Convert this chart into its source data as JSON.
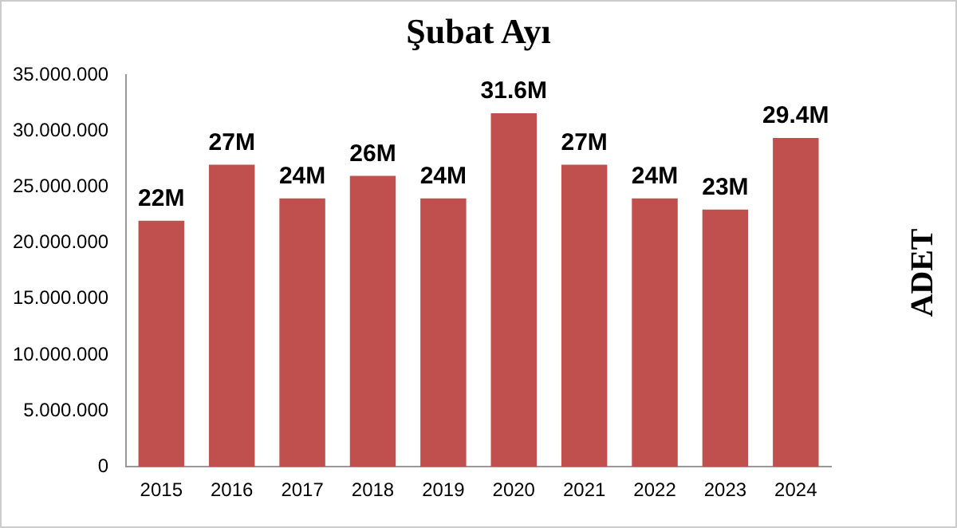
{
  "chart_data": {
    "type": "bar",
    "title": "Şubat Ayı",
    "ylabel": "ADET",
    "categories": [
      "2015",
      "2016",
      "2017",
      "2018",
      "2019",
      "2020",
      "2021",
      "2022",
      "2023",
      "2024"
    ],
    "values": [
      22000000,
      27000000,
      24000000,
      26000000,
      24000000,
      31600000,
      27000000,
      24000000,
      23000000,
      29400000
    ],
    "value_labels": [
      "22M",
      "27M",
      "24M",
      "26M",
      "24M",
      "31.6M",
      "27M",
      "24M",
      "23M",
      "29.4M"
    ],
    "color": "#c0504d",
    "ylim": [
      0,
      35000000
    ],
    "yticks": [
      {
        "value": 0,
        "label": "0"
      },
      {
        "value": 5000000,
        "label": "5.000.000"
      },
      {
        "value": 10000000,
        "label": "10.000.000"
      },
      {
        "value": 15000000,
        "label": "15.000.000"
      },
      {
        "value": 20000000,
        "label": "20.000.000"
      },
      {
        "value": 25000000,
        "label": "25.000.000"
      },
      {
        "value": 30000000,
        "label": "30.000.000"
      },
      {
        "value": 35000000,
        "label": "35.000.000"
      }
    ],
    "grid": false,
    "legend": false
  }
}
